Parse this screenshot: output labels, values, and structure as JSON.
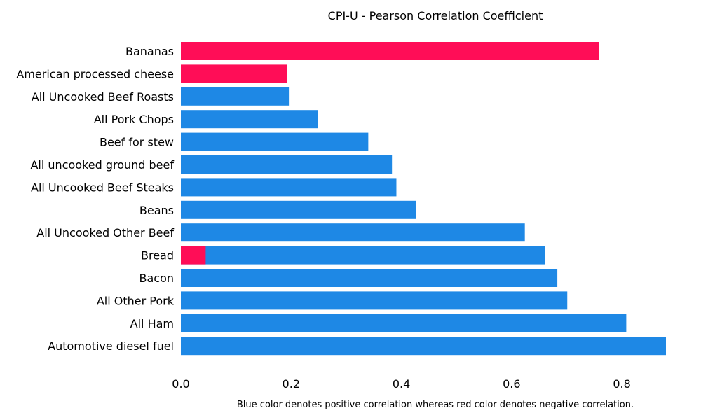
{
  "chart_data": {
    "type": "bar",
    "orientation": "horizontal",
    "title": "CPI-U - Pearson Correlation Coefficient",
    "footnote": "Blue color denotes positive correlation whereas red color denotes negative correlation.",
    "xlabel": "",
    "ylabel": "",
    "xlim": [
      0,
      0.88
    ],
    "xticks": [
      0.0,
      0.2,
      0.4,
      0.6,
      0.8
    ],
    "grid": false,
    "colors": {
      "positive": "#1e88e5",
      "negative": "#ff0d57"
    },
    "bars": [
      {
        "category": "Bananas",
        "value": 0.758,
        "sign": "negative"
      },
      {
        "category": "American processed cheese",
        "value": 0.193,
        "sign": "negative"
      },
      {
        "category": "All Uncooked Beef Roasts",
        "value": 0.196,
        "sign": "positive"
      },
      {
        "category": "All Pork Chops",
        "value": 0.249,
        "sign": "positive"
      },
      {
        "category": "Beef for stew",
        "value": 0.34,
        "sign": "positive"
      },
      {
        "category": "All uncooked ground beef",
        "value": 0.383,
        "sign": "positive"
      },
      {
        "category": "All Uncooked Beef Steaks",
        "value": 0.391,
        "sign": "positive"
      },
      {
        "category": "Beans",
        "value": 0.427,
        "sign": "positive"
      },
      {
        "category": "All Uncooked Other Beef",
        "value": 0.624,
        "sign": "positive"
      },
      {
        "category": "Bread",
        "value": 0.661,
        "sign": "positive",
        "negative_overlay": 0.045
      },
      {
        "category": "Bacon",
        "value": 0.683,
        "sign": "positive"
      },
      {
        "category": "All Other Pork",
        "value": 0.701,
        "sign": "positive"
      },
      {
        "category": "All Ham",
        "value": 0.808,
        "sign": "positive"
      },
      {
        "category": "Automotive diesel fuel",
        "value": 0.88,
        "sign": "positive"
      }
    ]
  }
}
